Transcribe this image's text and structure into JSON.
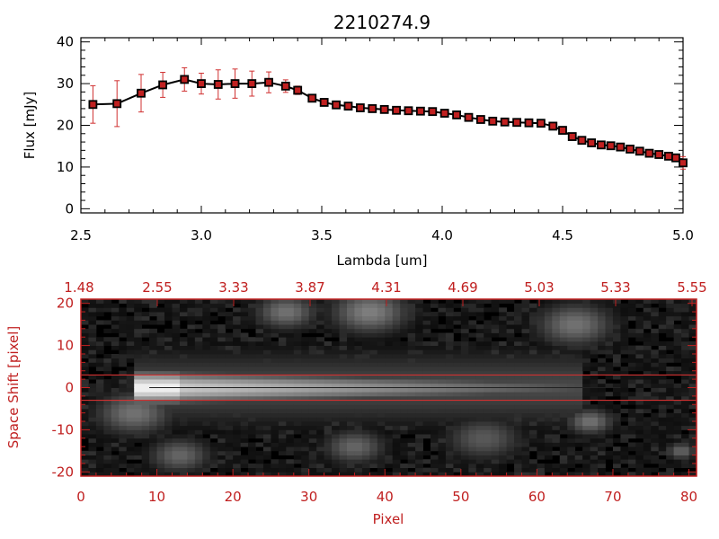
{
  "chart_data": [
    {
      "type": "line",
      "title": "2210274.9",
      "xlabel": "Lambda [um]",
      "ylabel": "Flux [mJy]",
      "xlim": [
        2.5,
        5.0
      ],
      "ylim": [
        -1,
        41
      ],
      "x_ticks": [
        "2.5",
        "3.0",
        "3.5",
        "4.0",
        "4.5",
        "5.0"
      ],
      "y_ticks": [
        "0",
        "10",
        "20",
        "30",
        "40"
      ],
      "grid": false,
      "colors": {
        "line": "#000000",
        "marker": "#c02020",
        "errorbar": "#d03030"
      },
      "series": [
        {
          "x": [
            2.55,
            2.65,
            2.75,
            2.84,
            2.93,
            3.0,
            3.07,
            3.14,
            3.21,
            3.28,
            3.35,
            3.4,
            3.46,
            3.51,
            3.56,
            3.61,
            3.66,
            3.71,
            3.76,
            3.81,
            3.86,
            3.91,
            3.96,
            4.01,
            4.06,
            4.11,
            4.16,
            4.21,
            4.26,
            4.31,
            4.36,
            4.41,
            4.46,
            4.5,
            4.54,
            4.58,
            4.62,
            4.66,
            4.7,
            4.74,
            4.78,
            4.82,
            4.86,
            4.9,
            4.94,
            4.97,
            5.0
          ],
          "y": [
            25,
            25.2,
            27.7,
            29.7,
            31,
            30,
            29.8,
            30,
            30,
            30.3,
            29.4,
            28.4,
            26.5,
            25.5,
            24.9,
            24.6,
            24.2,
            24,
            23.8,
            23.6,
            23.5,
            23.4,
            23.3,
            22.9,
            22.5,
            21.9,
            21.4,
            21,
            20.8,
            20.7,
            20.6,
            20.5,
            19.8,
            18.8,
            17.3,
            16.4,
            15.8,
            15.3,
            15.1,
            14.8,
            14.3,
            13.8,
            13.3,
            13,
            12.6,
            12.2,
            11
          ],
          "yerr": [
            4.5,
            5.5,
            4.5,
            3,
            2.8,
            2.5,
            3.5,
            3.5,
            3,
            2.5,
            1.5,
            1,
            0.8,
            0.6,
            0.6,
            0.6,
            0.5,
            0.5,
            0.5,
            0.5,
            0.5,
            0.5,
            0.5,
            0.5,
            0.5,
            0.5,
            0.5,
            0.5,
            0.5,
            0.5,
            0.5,
            0.5,
            0.5,
            0.5,
            0.5,
            0.5,
            0.5,
            0.5,
            0.5,
            0.5,
            0.5,
            0.5,
            0.5,
            0.5,
            0.5,
            0.5,
            1.5
          ]
        }
      ]
    },
    {
      "type": "heatmap",
      "xlabel": "Pixel",
      "ylabel": "Space Shift [pixel]",
      "xlim": [
        0,
        81
      ],
      "ylim": [
        -21,
        21
      ],
      "x_ticks": [
        "0",
        "10",
        "20",
        "30",
        "40",
        "50",
        "60",
        "70",
        "80"
      ],
      "y_ticks": [
        "-20",
        "-10",
        "0",
        "10",
        "20"
      ],
      "x2_ticks": [
        "1.48",
        "2.55",
        "3.33",
        "3.87",
        "4.31",
        "4.69",
        "5.03",
        "5.33",
        "5.55"
      ],
      "hlines": [
        3,
        -3
      ],
      "colors": {
        "axes": "#c02020",
        "hlines": "#d03030",
        "colormap": "grayscale"
      },
      "trace": {
        "center": 0,
        "x_start": 7,
        "x_end": 66,
        "peak_x": 10,
        "emission_blobs": [
          {
            "x": 7,
            "y": -6,
            "size": 5,
            "level": 0.45
          },
          {
            "x": 13,
            "y": -16,
            "size": 4,
            "level": 0.4
          },
          {
            "x": 27,
            "y": 18,
            "size": 4,
            "level": 0.45
          },
          {
            "x": 38,
            "y": 18,
            "size": 5,
            "level": 0.5
          },
          {
            "x": 36,
            "y": -14,
            "size": 4,
            "level": 0.4
          },
          {
            "x": 53,
            "y": -12,
            "size": 5,
            "level": 0.35
          },
          {
            "x": 65,
            "y": 15,
            "size": 5,
            "level": 0.45
          },
          {
            "x": 67,
            "y": -8,
            "size": 3,
            "level": 0.45
          },
          {
            "x": 79,
            "y": -15,
            "size": 2,
            "level": 0.4
          }
        ]
      }
    }
  ]
}
